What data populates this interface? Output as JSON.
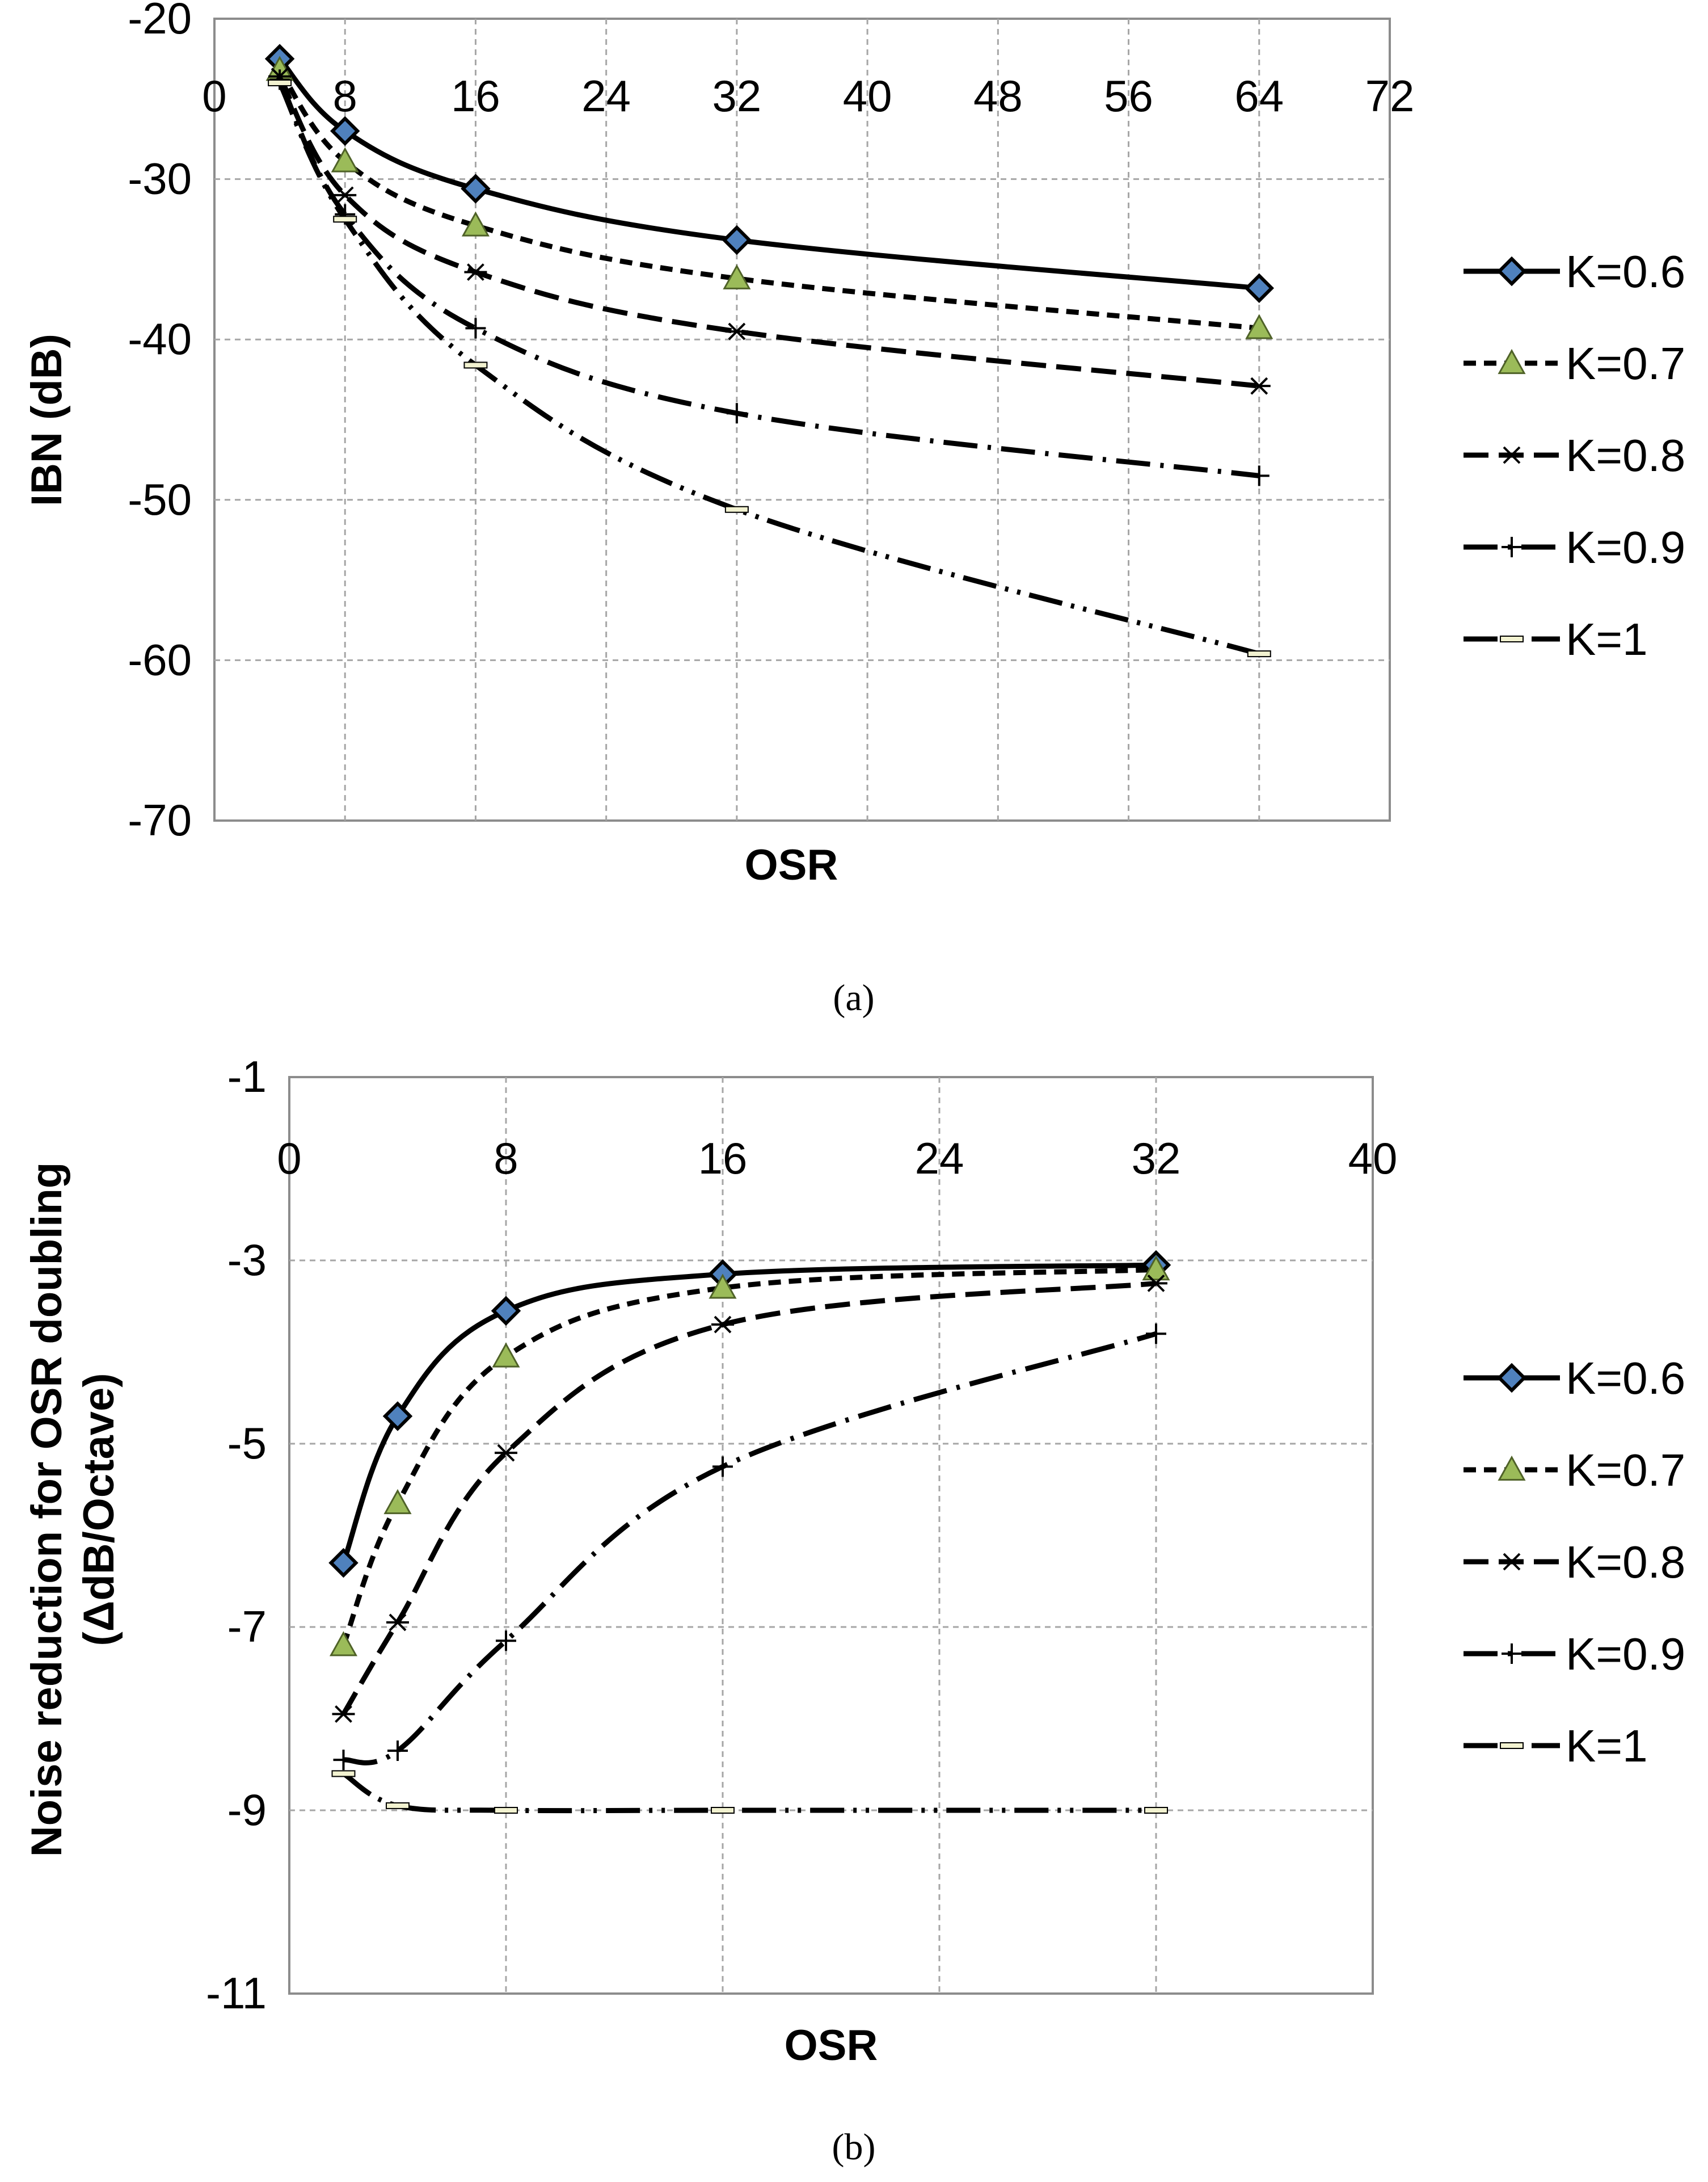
{
  "chart_data": [
    {
      "type": "line",
      "panel_caption": "(a)",
      "xlabel": "OSR",
      "ylabel": "IBN (dB)",
      "xlim": [
        0,
        72
      ],
      "ylim": [
        -70,
        -20
      ],
      "x_ticks": [
        0,
        8,
        16,
        24,
        32,
        40,
        48,
        56,
        64,
        72
      ],
      "y_ticks": [
        -20,
        -30,
        -40,
        -50,
        -60,
        -70
      ],
      "x_axis_position": "top",
      "grid": true,
      "legend_position": "right",
      "x": [
        4,
        8,
        16,
        32,
        64
      ],
      "series": [
        {
          "name": "K=0.6",
          "values": [
            -22.5,
            -27,
            -30.6,
            -33.8,
            -36.8
          ]
        },
        {
          "name": "K=0.7",
          "values": [
            -23.2,
            -28.9,
            -32.9,
            -36.2,
            -39.3
          ]
        },
        {
          "name": "K=0.8",
          "values": [
            -23.6,
            -31,
            -35.8,
            -39.5,
            -42.9
          ]
        },
        {
          "name": "K=0.9",
          "values": [
            -23.8,
            -32.2,
            -39.3,
            -44.6,
            -48.5
          ]
        },
        {
          "name": "K=1",
          "values": [
            -24,
            -32.5,
            -41.6,
            -50.6,
            -59.6
          ]
        }
      ]
    },
    {
      "type": "line",
      "panel_caption": "(b)",
      "xlabel": "OSR",
      "ylabel": "Noise reduction for OSR doubling (ΔdB/Octave)",
      "ylabel_lines": [
        "Noise reduction for OSR doubling",
        "(ΔdB/Octave)"
      ],
      "xlim": [
        0,
        40
      ],
      "ylim": [
        -11,
        -1
      ],
      "x_ticks": [
        0,
        8,
        16,
        24,
        32,
        40
      ],
      "y_ticks": [
        -1,
        -3,
        -5,
        -7,
        -9,
        -11
      ],
      "x_axis_position": "top",
      "grid": true,
      "legend_position": "right",
      "x": [
        2,
        4,
        8,
        16,
        32
      ],
      "series": [
        {
          "name": "K=0.6",
          "values": [
            -6.3,
            -4.7,
            -3.55,
            -3.15,
            -3.05
          ]
        },
        {
          "name": "K=0.7",
          "values": [
            -7.2,
            -5.65,
            -4.05,
            -3.3,
            -3.1
          ]
        },
        {
          "name": "K=0.8",
          "values": [
            -7.95,
            -6.95,
            -5.1,
            -3.7,
            -3.25
          ]
        },
        {
          "name": "K=0.9",
          "values": [
            -8.45,
            -8.35,
            -7.15,
            -5.25,
            -3.8
          ]
        },
        {
          "name": "K=1",
          "values": [
            -8.6,
            -8.95,
            -9.0,
            -9.0,
            -9.0
          ]
        }
      ]
    }
  ],
  "series_styles": {
    "K=0.6": {
      "dash": "none",
      "marker": "diamond",
      "marker_fill": "#4f81bd"
    },
    "K=0.7": {
      "dash": "22 14",
      "marker": "triangle",
      "marker_fill": "#9bbb59"
    },
    "K=0.8": {
      "dash": "44 18",
      "marker": "asterisk",
      "marker_fill": "#000000"
    },
    "K=0.9": {
      "dash": "60 18 6 18",
      "marker": "plus",
      "marker_fill": "#000000"
    },
    "K=1": {
      "dash": "60 16 6 16 6 16",
      "marker": "dash",
      "marker_fill": "#f2f2d0"
    }
  },
  "colors": {
    "line": "#000000",
    "grid": "#a6a6a6",
    "frame": "#8c8c8c"
  }
}
